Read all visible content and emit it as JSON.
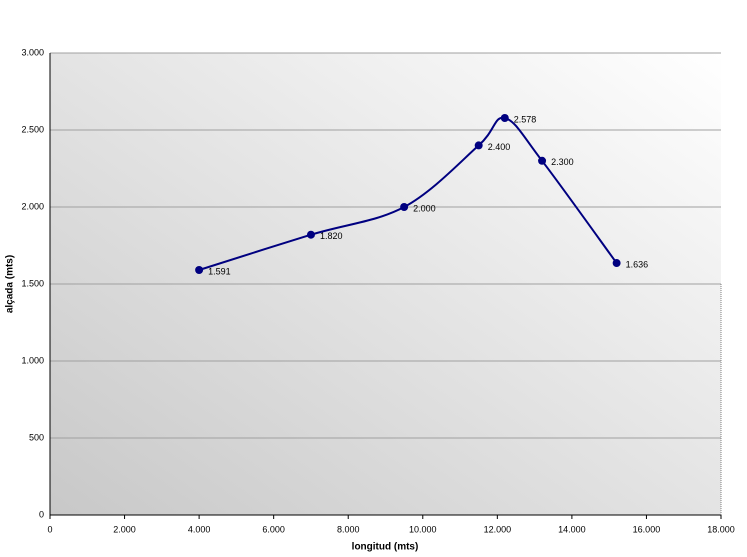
{
  "chart_data": {
    "type": "scatter-smooth",
    "x_label": "longitud (mts)",
    "y_label": "alçada (mts)",
    "x": [
      4000,
      7000,
      9500,
      11500,
      12200,
      13200,
      15200
    ],
    "series": [
      {
        "color": "#000080",
        "values": [
          1591,
          1820,
          2000,
          2400,
          2578,
          2300,
          1636
        ],
        "value_labels": [
          "1.591",
          "1.820",
          "2.000",
          "2.400",
          "2.578",
          "2.300",
          "1.636"
        ]
      }
    ],
    "xlim": [
      0,
      18000
    ],
    "xticks": [
      0,
      {
        "value": 2000,
        "label": "2.000"
      },
      {
        "value": 4000,
        "label": "4.000"
      },
      {
        "value": 6000,
        "label": "6.000"
      },
      {
        "value": 8000,
        "label": "8.000"
      },
      {
        "value": 10000,
        "label": "10.000"
      },
      {
        "value": 12000,
        "label": "12.000"
      },
      {
        "value": 14000,
        "label": "14.000"
      },
      {
        "value": 16000,
        "label": "16.000"
      },
      {
        "value": 18000,
        "label": "18.000"
      }
    ],
    "ylim": [
      0,
      3000
    ],
    "yticks": [
      0,
      500,
      {
        "value": 1000,
        "label": "1.000"
      },
      {
        "value": 1500,
        "label": "1.500"
      },
      {
        "value": 2000,
        "label": "2.000"
      },
      {
        "value": 2500,
        "label": "2.500"
      },
      {
        "value": 3000,
        "label": "3.000"
      }
    ],
    "grid": true
  }
}
